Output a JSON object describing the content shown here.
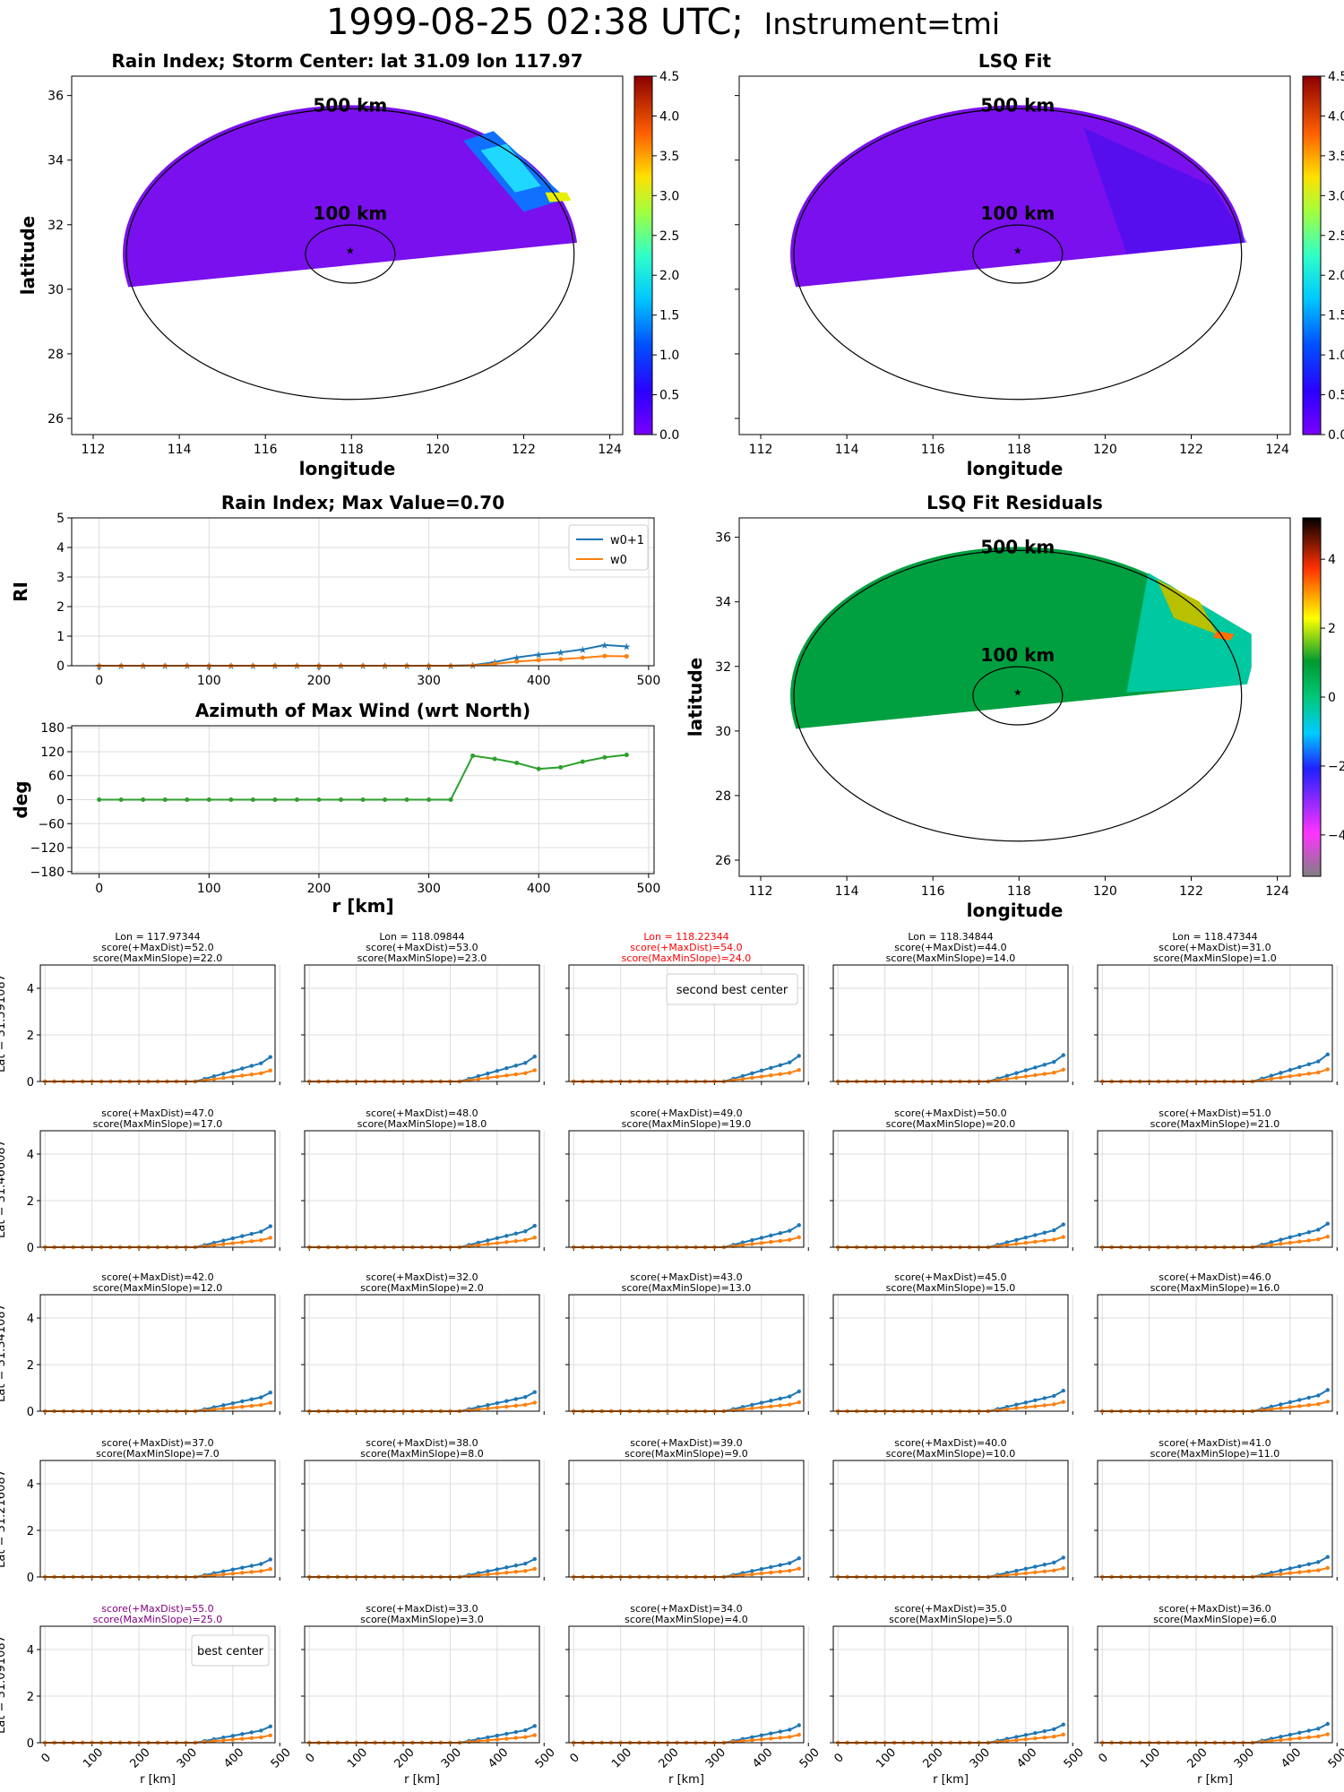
{
  "figure": {
    "title_main": "1999-08-25 02:38 UTC;",
    "title_instrument": "Instrument=tmi"
  },
  "map_panels": [
    {
      "id": "rain-index-map",
      "title": "Rain Index; Storm Center: lat 31.09 lon 117.97",
      "xlabel": "longitude",
      "ylabel": "latitude",
      "show_ylabels": true,
      "xticks": [
        "112",
        "114",
        "116",
        "118",
        "120",
        "122",
        "124"
      ],
      "yticks": [
        "26",
        "28",
        "30",
        "32",
        "34",
        "36"
      ],
      "ring_labels": [
        "500 km",
        "100 km"
      ],
      "colorbar_ticks": [
        "0.0",
        "0.5",
        "1.0",
        "1.5",
        "2.0",
        "2.5",
        "3.0",
        "3.5",
        "4.0",
        "4.5"
      ],
      "colormap": "jet"
    },
    {
      "id": "lsq-fit-map",
      "title": "LSQ Fit",
      "xlabel": "longitude",
      "ylabel": "",
      "show_ylabels": false,
      "xticks": [
        "112",
        "114",
        "116",
        "118",
        "120",
        "122",
        "124"
      ],
      "yticks": [
        "26",
        "28",
        "30",
        "32",
        "34",
        "36"
      ],
      "ring_labels": [
        "500 km",
        "100 km"
      ],
      "colorbar_ticks": [
        "0.0",
        "0.5",
        "1.0",
        "1.5",
        "2.0",
        "2.5",
        "3.0",
        "3.5",
        "4.0",
        "4.5"
      ],
      "colormap": "jet"
    },
    {
      "id": "lsq-residual-map",
      "title": "LSQ Fit Residuals",
      "xlabel": "longitude",
      "ylabel": "latitude",
      "show_ylabels": true,
      "xticks": [
        "112",
        "114",
        "116",
        "118",
        "120",
        "122",
        "124"
      ],
      "yticks": [
        "26",
        "28",
        "30",
        "32",
        "34",
        "36"
      ],
      "ring_labels": [
        "500 km",
        "100 km"
      ],
      "colorbar_ticks": [
        "4",
        "2",
        "0",
        "−2",
        "−4"
      ],
      "colormap": "residual"
    }
  ],
  "chart_data": [
    {
      "type": "line",
      "title": "Rain Index; Max Value=0.70",
      "xlabel": "",
      "ylabel": "RI",
      "xlim": [
        -25,
        505
      ],
      "ylim": [
        0,
        5
      ],
      "xticks": [
        "0",
        "100",
        "200",
        "300",
        "400",
        "500"
      ],
      "yticks": [
        "0",
        "1",
        "2",
        "3",
        "4",
        "5"
      ],
      "legend": "top-right",
      "x": [
        0,
        20,
        40,
        60,
        80,
        100,
        120,
        140,
        160,
        180,
        200,
        220,
        240,
        260,
        280,
        300,
        320,
        340,
        360,
        380,
        400,
        420,
        440,
        460,
        480
      ],
      "series": [
        {
          "name": "w0+1",
          "color": "#1f77b4",
          "values": [
            0,
            0,
            0,
            0,
            0,
            0,
            0,
            0,
            0,
            0,
            0,
            0,
            0,
            0,
            0,
            0,
            0,
            0.02,
            0.12,
            0.28,
            0.38,
            0.45,
            0.55,
            0.7,
            0.65
          ]
        },
        {
          "name": "w0",
          "color": "#ff7f0e",
          "values": [
            0,
            0,
            0,
            0,
            0,
            0,
            0,
            0,
            0,
            0,
            0,
            0,
            0,
            0,
            0,
            0,
            0,
            0.01,
            0.06,
            0.14,
            0.19,
            0.22,
            0.27,
            0.33,
            0.32
          ]
        }
      ]
    },
    {
      "type": "line",
      "title": "Azimuth of Max Wind (wrt North)",
      "xlabel": "r [km]",
      "ylabel": "deg",
      "xlim": [
        -25,
        505
      ],
      "ylim": [
        -185,
        185
      ],
      "xticks": [
        "0",
        "100",
        "200",
        "300",
        "400",
        "500"
      ],
      "yticks": [
        "−180",
        "−120",
        "−60",
        "0",
        "60",
        "120",
        "180"
      ],
      "x": [
        0,
        20,
        40,
        60,
        80,
        100,
        120,
        140,
        160,
        180,
        200,
        220,
        240,
        260,
        280,
        300,
        320,
        340,
        360,
        380,
        400,
        420,
        440,
        460,
        480
      ],
      "series": [
        {
          "name": "",
          "color": "#2ca02c",
          "values": [
            0,
            0,
            0,
            0,
            0,
            0,
            0,
            0,
            0,
            0,
            0,
            0,
            0,
            0,
            0,
            0,
            0,
            110,
            102,
            92,
            77,
            81,
            95,
            106,
            112
          ]
        }
      ]
    }
  ],
  "grid": {
    "xticks": [
      "0",
      "100",
      "200",
      "300",
      "400",
      "500"
    ],
    "yticks": [
      "0",
      "2",
      "4"
    ],
    "xlabel": "r [km]",
    "row_labels": [
      "Lat = 31.591087",
      "Lat = 31.466087",
      "Lat = 31.341087",
      "Lat = 31.216087",
      "Lat = 31.091087"
    ],
    "x": [
      0,
      20,
      40,
      60,
      80,
      100,
      120,
      140,
      160,
      180,
      200,
      220,
      240,
      260,
      280,
      300,
      320,
      340,
      360,
      380,
      400,
      420,
      440,
      460,
      480
    ],
    "row_max": [
      1.05,
      0.9,
      0.8,
      0.75,
      0.7
    ],
    "cells": [
      [
        {
          "lines": [
            "Lon = 117.97344",
            "score(+MaxDist)=52.0",
            "score(MaxMinSlope)=22.0"
          ],
          "highlight": "none",
          "legend": ""
        },
        {
          "lines": [
            "Lon = 118.09844",
            "score(+MaxDist)=53.0",
            "score(MaxMinSlope)=23.0"
          ],
          "highlight": "none",
          "legend": ""
        },
        {
          "lines": [
            "Lon = 118.22344",
            "score(+MaxDist)=54.0",
            "score(MaxMinSlope)=24.0"
          ],
          "highlight": "red",
          "legend": "second best center"
        },
        {
          "lines": [
            "Lon = 118.34844",
            "score(+MaxDist)=44.0",
            "score(MaxMinSlope)=14.0"
          ],
          "highlight": "none",
          "legend": ""
        },
        {
          "lines": [
            "Lon = 118.47344",
            "score(+MaxDist)=31.0",
            "score(MaxMinSlope)=1.0"
          ],
          "highlight": "none",
          "legend": ""
        }
      ],
      [
        {
          "lines": [
            "score(+MaxDist)=47.0",
            "score(MaxMinSlope)=17.0"
          ],
          "highlight": "none",
          "legend": ""
        },
        {
          "lines": [
            "score(+MaxDist)=48.0",
            "score(MaxMinSlope)=18.0"
          ],
          "highlight": "none",
          "legend": ""
        },
        {
          "lines": [
            "score(+MaxDist)=49.0",
            "score(MaxMinSlope)=19.0"
          ],
          "highlight": "none",
          "legend": ""
        },
        {
          "lines": [
            "score(+MaxDist)=50.0",
            "score(MaxMinSlope)=20.0"
          ],
          "highlight": "none",
          "legend": ""
        },
        {
          "lines": [
            "score(+MaxDist)=51.0",
            "score(MaxMinSlope)=21.0"
          ],
          "highlight": "none",
          "legend": ""
        }
      ],
      [
        {
          "lines": [
            "score(+MaxDist)=42.0",
            "score(MaxMinSlope)=12.0"
          ],
          "highlight": "none",
          "legend": ""
        },
        {
          "lines": [
            "score(+MaxDist)=32.0",
            "score(MaxMinSlope)=2.0"
          ],
          "highlight": "none",
          "legend": ""
        },
        {
          "lines": [
            "score(+MaxDist)=43.0",
            "score(MaxMinSlope)=13.0"
          ],
          "highlight": "none",
          "legend": ""
        },
        {
          "lines": [
            "score(+MaxDist)=45.0",
            "score(MaxMinSlope)=15.0"
          ],
          "highlight": "none",
          "legend": ""
        },
        {
          "lines": [
            "score(+MaxDist)=46.0",
            "score(MaxMinSlope)=16.0"
          ],
          "highlight": "none",
          "legend": ""
        }
      ],
      [
        {
          "lines": [
            "score(+MaxDist)=37.0",
            "score(MaxMinSlope)=7.0"
          ],
          "highlight": "none",
          "legend": ""
        },
        {
          "lines": [
            "score(+MaxDist)=38.0",
            "score(MaxMinSlope)=8.0"
          ],
          "highlight": "none",
          "legend": ""
        },
        {
          "lines": [
            "score(+MaxDist)=39.0",
            "score(MaxMinSlope)=9.0"
          ],
          "highlight": "none",
          "legend": ""
        },
        {
          "lines": [
            "score(+MaxDist)=40.0",
            "score(MaxMinSlope)=10.0"
          ],
          "highlight": "none",
          "legend": ""
        },
        {
          "lines": [
            "score(+MaxDist)=41.0",
            "score(MaxMinSlope)=11.0"
          ],
          "highlight": "none",
          "legend": ""
        }
      ],
      [
        {
          "lines": [
            "score(+MaxDist)=55.0",
            "score(MaxMinSlope)=25.0"
          ],
          "highlight": "purple",
          "legend": "best center"
        },
        {
          "lines": [
            "score(+MaxDist)=33.0",
            "score(MaxMinSlope)=3.0"
          ],
          "highlight": "none",
          "legend": ""
        },
        {
          "lines": [
            "score(+MaxDist)=34.0",
            "score(MaxMinSlope)=4.0"
          ],
          "highlight": "none",
          "legend": ""
        },
        {
          "lines": [
            "score(+MaxDist)=35.0",
            "score(MaxMinSlope)=5.0"
          ],
          "highlight": "none",
          "legend": ""
        },
        {
          "lines": [
            "score(+MaxDist)=36.0",
            "score(MaxMinSlope)=6.0"
          ],
          "highlight": "none",
          "legend": ""
        }
      ]
    ]
  },
  "colors": {
    "series_blue": "#1f77b4",
    "series_orange": "#ff7f0e",
    "series_green": "#2ca02c",
    "highlight_red": "#ff0000",
    "highlight_purple": "#800080",
    "grid": "#dddddd"
  }
}
